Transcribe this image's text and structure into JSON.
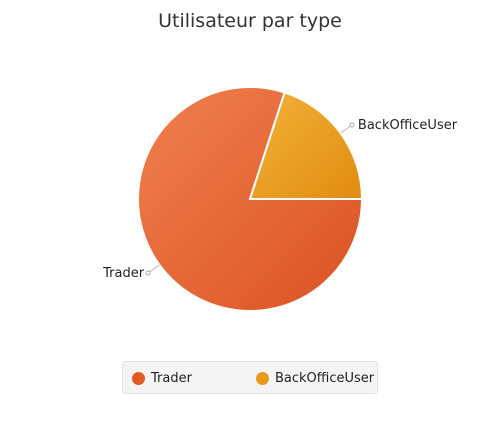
{
  "chart_data": {
    "type": "pie",
    "title": "Utilisateur par type",
    "slices": [
      {
        "label": "Trader",
        "value": 80,
        "color": "#e05a26"
      },
      {
        "label": "BackOfficeUser",
        "value": 20,
        "color": "#e89a1c"
      }
    ],
    "legend": {
      "placement": "bottom",
      "items": [
        "Trader",
        "BackOfficeUser"
      ]
    }
  }
}
